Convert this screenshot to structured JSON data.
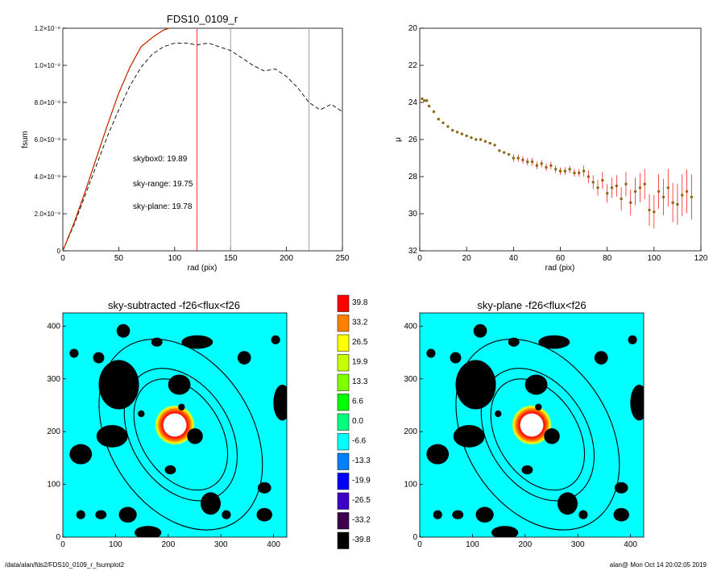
{
  "footer": {
    "path": "/data/alan/fds2/FDS10_0109_r_fsumplot2",
    "stamp": "alan@  Mon Oct 14 20:02:05 2019"
  },
  "chart_data": [
    {
      "type": "line",
      "title": "FDS10_0109_r",
      "xlabel": "rad (pix)",
      "ylabel": "fsum",
      "xlim": [
        0,
        250
      ],
      "ylim": [
        0,
        1.2e-08
      ],
      "xticks": [
        "0",
        "50",
        "100",
        "150",
        "200",
        "250"
      ],
      "yticks": [
        "0",
        "2.0×10⁻⁹",
        "4.0×10⁻⁹",
        "6.0×10⁻⁹",
        "8.0×10⁻⁹",
        "1.0×10⁻⁸",
        "1.2×10⁻⁸"
      ],
      "vlines": [
        120,
        150,
        220
      ],
      "annotations": [
        {
          "text": "skybox0: 19.89",
          "color": "#000000"
        },
        {
          "text": "sky-range: 19.75",
          "color": "#ff0000"
        },
        {
          "text": "sky-plane: 19.78",
          "color": "#00dd00"
        }
      ],
      "series": [
        {
          "style": "dashed",
          "x": [
            0,
            10,
            20,
            30,
            40,
            50,
            60,
            70,
            80,
            90,
            100,
            110,
            120,
            130,
            140,
            150,
            160,
            170,
            180,
            190,
            200,
            210,
            220,
            230,
            240,
            250
          ],
          "y": [
            0,
            1.4e-09,
            3e-09,
            4.6e-09,
            6.2e-09,
            7.6e-09,
            8.9e-09,
            9.9e-09,
            1.06e-08,
            1.1e-08,
            1.12e-08,
            1.12e-08,
            1.11e-08,
            1.12e-08,
            1.1e-08,
            1.08e-08,
            1.04e-08,
            1e-08,
            9.7e-09,
            9.8e-09,
            9.4e-09,
            8.8e-09,
            8e-09,
            7.6e-09,
            7.9e-09,
            7.5e-09
          ]
        },
        {
          "style": "solid-red",
          "x": [
            0,
            10,
            20,
            30,
            40,
            50,
            60,
            70,
            80,
            90,
            95
          ],
          "y": [
            0,
            1.5e-09,
            3.2e-09,
            5e-09,
            6.8e-09,
            8.5e-09,
            9.9e-09,
            1.1e-08,
            1.15e-08,
            1.19e-08,
            1.2e-08
          ]
        }
      ]
    },
    {
      "type": "scatter",
      "title": "",
      "xlabel": "rad (pix)",
      "ylabel": "μ",
      "xlim": [
        0,
        120
      ],
      "ylim": [
        32,
        20
      ],
      "xticks": [
        "0",
        "20",
        "40",
        "60",
        "80",
        "100",
        "120"
      ],
      "yticks": [
        "20",
        "22",
        "24",
        "26",
        "28",
        "30",
        "32"
      ],
      "series": [
        {
          "x": [
            1,
            2,
            3,
            4,
            6,
            8,
            10,
            12,
            14,
            16,
            18,
            20,
            22,
            24,
            26,
            28,
            30,
            32,
            34,
            36,
            38,
            40,
            42,
            44,
            46,
            48,
            50,
            52,
            54,
            56,
            58,
            60,
            62,
            64,
            66,
            68,
            70,
            72,
            74,
            76,
            78,
            80,
            82,
            84,
            86,
            88,
            90,
            92,
            94,
            96,
            98,
            100,
            102,
            104,
            106,
            108,
            110,
            112,
            114,
            116
          ],
          "y": [
            23.8,
            23.9,
            23.9,
            24.2,
            24.5,
            24.9,
            25.1,
            25.3,
            25.5,
            25.6,
            25.7,
            25.8,
            25.9,
            26.0,
            26.0,
            26.1,
            26.2,
            26.3,
            26.6,
            26.7,
            26.8,
            27.0,
            27.0,
            27.1,
            27.2,
            27.2,
            27.4,
            27.3,
            27.5,
            27.4,
            27.6,
            27.7,
            27.7,
            27.6,
            27.8,
            27.8,
            27.7,
            28.0,
            28.3,
            28.6,
            28.2,
            28.9,
            28.6,
            28.5,
            29.2,
            28.4,
            29.4,
            28.8,
            28.6,
            28.4,
            29.8,
            29.9,
            28.8,
            29.1,
            28.6,
            29.4,
            29.5,
            29.0,
            28.8,
            29.1
          ]
        }
      ]
    },
    {
      "type": "heatmap",
      "title": "sky-subtracted -f26<flux<f26",
      "xlim": [
        0,
        500
      ],
      "ylim": [
        0,
        500
      ],
      "xticks": [
        "0",
        "100",
        "200",
        "300",
        "400"
      ],
      "yticks": [
        "0",
        "100",
        "200",
        "300",
        "400"
      ]
    },
    {
      "type": "heatmap",
      "title": "sky-plane -f26<flux<f26",
      "xlim": [
        0,
        500
      ],
      "ylim": [
        0,
        500
      ],
      "xticks": [
        "0",
        "100",
        "200",
        "300",
        "400"
      ],
      "yticks": [
        "0",
        "100",
        "200",
        "300",
        "400"
      ]
    },
    {
      "type": "table",
      "title": "",
      "colorbar": [
        {
          "label": "39.8",
          "color": "#ff0000"
        },
        {
          "label": "33.2",
          "color": "#ff7f00"
        },
        {
          "label": "26.5",
          "color": "#ffff00"
        },
        {
          "label": "19.9",
          "color": "#c8ff00"
        },
        {
          "label": "13.3",
          "color": "#7fff00"
        },
        {
          "label": "6.6",
          "color": "#00ff00"
        },
        {
          "label": "0.0",
          "color": "#00ff7f"
        },
        {
          "label": "-6.6",
          "color": "#00ffff"
        },
        {
          "label": "-13.3",
          "color": "#007fff"
        },
        {
          "label": "-19.9",
          "color": "#0000ff"
        },
        {
          "label": "-26.5",
          "color": "#3f00c8"
        },
        {
          "label": "-33.2",
          "color": "#3f004f"
        },
        {
          "label": "-39.8",
          "color": "#000000"
        }
      ]
    }
  ]
}
